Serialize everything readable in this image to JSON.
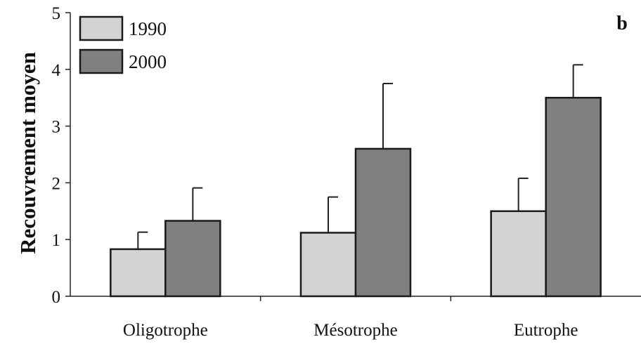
{
  "chart_data": {
    "type": "bar",
    "panel_label": "b",
    "ylabel": "Recouvrement moyen",
    "xlabel": "",
    "ylim": [
      0,
      5
    ],
    "yticks": [
      "0",
      "1",
      "2",
      "3",
      "4",
      "5"
    ],
    "categories": [
      "Oligotrophe",
      "Mésotrophe",
      "Eutrophe"
    ],
    "series": [
      {
        "name": "1990",
        "color": "#d3d3d3",
        "values": [
          0.83,
          1.12,
          1.5
        ],
        "error": [
          0.3,
          0.63,
          0.58
        ]
      },
      {
        "name": "2000",
        "color": "#808080",
        "values": [
          1.33,
          2.6,
          3.5
        ],
        "error": [
          0.58,
          1.15,
          0.58
        ]
      }
    ],
    "legend_position": "top-left",
    "grid": false
  }
}
